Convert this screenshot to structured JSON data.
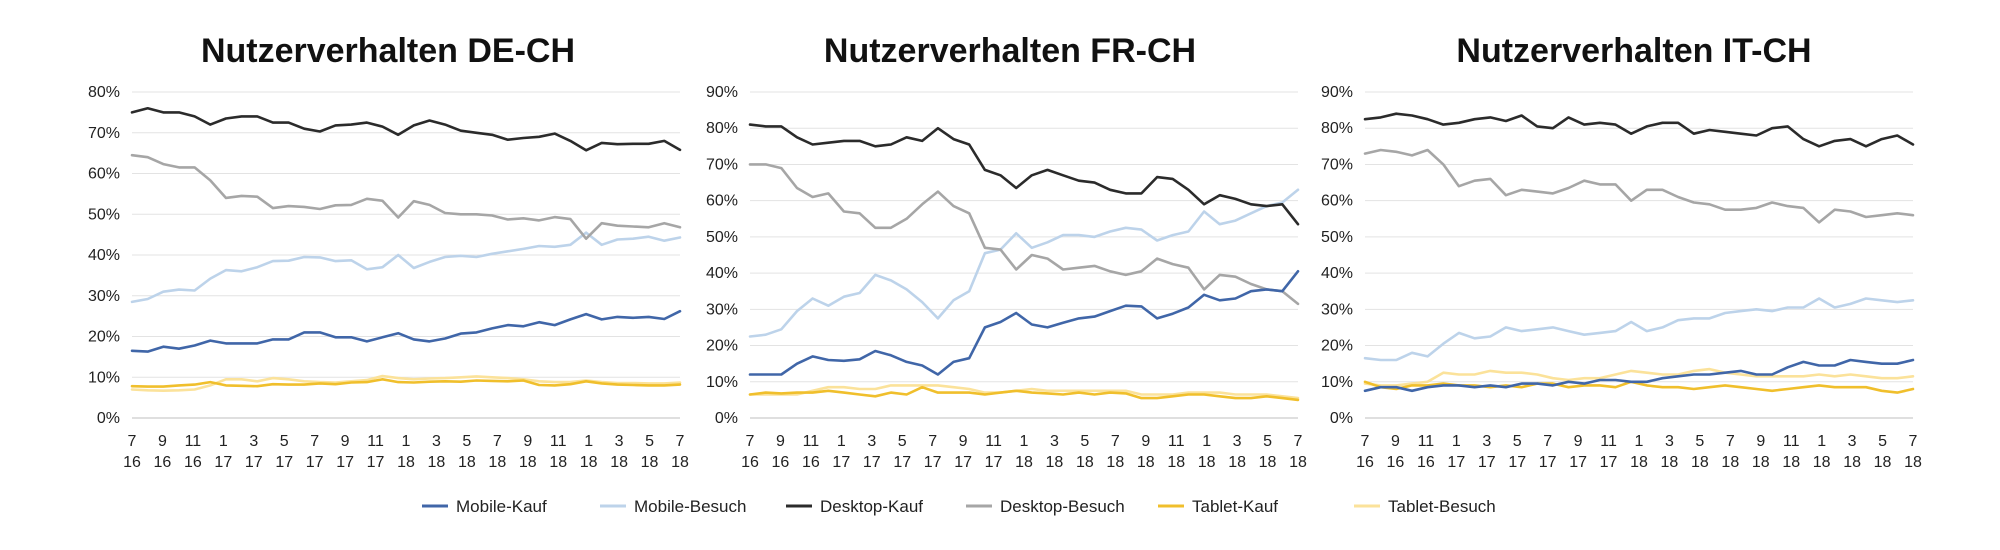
{
  "chart_data": [
    {
      "type": "line",
      "title": "Nutzerverhalten DE-CH",
      "xlabel": "",
      "ylabel": "",
      "ylim": [
        0,
        80
      ],
      "y_ticks": [
        "0%",
        "10%",
        "20%",
        "30%",
        "40%",
        "50%",
        "60%",
        "70%",
        "80%"
      ],
      "x_ticks": [
        [
          "7",
          "16"
        ],
        [
          "9",
          "16"
        ],
        [
          "11",
          "16"
        ],
        [
          "1",
          "17"
        ],
        [
          "3",
          "17"
        ],
        [
          "5",
          "17"
        ],
        [
          "7",
          "17"
        ],
        [
          "9",
          "17"
        ],
        [
          "11",
          "17"
        ],
        [
          "1",
          "18"
        ],
        [
          "3",
          "18"
        ],
        [
          "5",
          "18"
        ],
        [
          "7",
          "18"
        ],
        [
          "9",
          "18"
        ],
        [
          "11",
          "18"
        ],
        [
          "1",
          "18"
        ],
        [
          "3",
          "18"
        ],
        [
          "5",
          "18"
        ],
        [
          "7",
          "18"
        ]
      ],
      "grid": true,
      "series": [
        {
          "name": "Mobile-Kauf",
          "values": [
            16.5,
            16.3,
            17.5,
            17,
            17.8,
            19,
            18.3,
            18.3,
            18.3,
            19.3,
            19.3,
            21,
            21,
            19.8,
            19.8,
            18.8,
            19.8,
            20.8,
            19.3,
            18.8,
            19.5,
            20.7,
            21,
            22,
            22.8,
            22.5,
            23.5,
            22.8,
            24.2,
            25.5,
            24.2,
            24.8,
            24.6,
            24.8,
            24.3,
            26.2
          ]
        },
        {
          "name": "Mobile-Besuch",
          "values": [
            28.5,
            29.2,
            31,
            31.5,
            31.3,
            34.2,
            36.3,
            36,
            37,
            38.5,
            38.6,
            39.5,
            39.4,
            38.5,
            38.7,
            36.5,
            37,
            40,
            36.8,
            38.3,
            39.5,
            39.8,
            39.5,
            40.3,
            40.9,
            41.5,
            42.2,
            42,
            42.5,
            45.5,
            42.5,
            43.8,
            44,
            44.5,
            43.5,
            44.3
          ]
        },
        {
          "name": "Desktop-Kauf",
          "values": [
            75,
            76,
            75,
            75,
            74,
            72,
            73.5,
            74,
            74,
            72.5,
            72.5,
            71,
            70.3,
            71.8,
            72,
            72.5,
            71.5,
            69.5,
            71.8,
            73,
            72,
            70.5,
            70,
            69.5,
            68.3,
            68.7,
            69,
            69.8,
            68,
            65.7,
            67.5,
            67.2,
            67.3,
            67.3,
            68,
            65.8
          ]
        },
        {
          "name": "Desktop-Besuch",
          "values": [
            64.5,
            64,
            62.3,
            61.5,
            61.5,
            58.3,
            54,
            54.5,
            54.3,
            51.5,
            52,
            51.8,
            51.3,
            52.2,
            52.3,
            53.8,
            53.3,
            49.2,
            53.2,
            52.3,
            50.3,
            50,
            50,
            49.7,
            48.7,
            49,
            48.5,
            49.3,
            48.8,
            44,
            47.8,
            47.2,
            47,
            46.8,
            47.8,
            46.8
          ]
        },
        {
          "name": "Tablet-Kauf",
          "values": [
            7.8,
            7.7,
            7.7,
            8,
            8.2,
            8.8,
            8,
            7.9,
            7.8,
            8.3,
            8.2,
            8.2,
            8.5,
            8.3,
            8.7,
            8.8,
            9.5,
            8.8,
            8.7,
            8.9,
            9,
            8.9,
            9.2,
            9.1,
            9,
            9.2,
            8.1,
            8,
            8.3,
            9,
            8.5,
            8.2,
            8.1,
            8,
            8,
            8.2
          ]
        },
        {
          "name": "Tablet-Besuch",
          "values": [
            7,
            6.8,
            6.7,
            6.8,
            7,
            8,
            9.5,
            9.5,
            9,
            9.8,
            9.5,
            9,
            8.8,
            8.7,
            9,
            9.3,
            10.3,
            9.8,
            9.5,
            9.7,
            9.8,
            10,
            10.2,
            10,
            9.8,
            9.5,
            9,
            8.8,
            8.8,
            9.2,
            8.8,
            8.6,
            8.6,
            8.5,
            8.5,
            8.7
          ]
        }
      ]
    },
    {
      "type": "line",
      "title": "Nutzerverhalten FR-CH",
      "xlabel": "",
      "ylabel": "",
      "ylim": [
        0,
        90
      ],
      "y_ticks": [
        "0%",
        "10%",
        "20%",
        "30%",
        "40%",
        "50%",
        "60%",
        "70%",
        "80%",
        "90%"
      ],
      "x_ticks": [
        [
          "7",
          "16"
        ],
        [
          "9",
          "16"
        ],
        [
          "11",
          "16"
        ],
        [
          "1",
          "17"
        ],
        [
          "3",
          "17"
        ],
        [
          "5",
          "17"
        ],
        [
          "7",
          "17"
        ],
        [
          "9",
          "17"
        ],
        [
          "11",
          "17"
        ],
        [
          "1",
          "18"
        ],
        [
          "3",
          "18"
        ],
        [
          "5",
          "18"
        ],
        [
          "7",
          "18"
        ],
        [
          "9",
          "18"
        ],
        [
          "11",
          "18"
        ],
        [
          "1",
          "18"
        ],
        [
          "3",
          "18"
        ],
        [
          "5",
          "18"
        ],
        [
          "7",
          "18"
        ]
      ],
      "grid": true,
      "series": [
        {
          "name": "Mobile-Kauf",
          "values": [
            12,
            12,
            12,
            15,
            17,
            16,
            15.8,
            16.2,
            18.5,
            17.3,
            15.5,
            14.5,
            12,
            15.5,
            16.5,
            25,
            26.5,
            29,
            25.8,
            25,
            26.3,
            27.5,
            28,
            29.5,
            31,
            30.8,
            27.5,
            28.8,
            30.5,
            34,
            32.5,
            33,
            35,
            35.5,
            35,
            40.5
          ]
        },
        {
          "name": "Mobile-Besuch",
          "values": [
            22.5,
            23,
            24.5,
            29.5,
            33,
            31,
            33.5,
            34.5,
            39.5,
            38,
            35.5,
            32,
            27.5,
            32.5,
            35,
            45.5,
            46.5,
            51,
            47,
            48.5,
            50.5,
            50.5,
            50,
            51.5,
            52.5,
            52,
            49,
            50.5,
            51.5,
            57,
            53.5,
            54.5,
            56.5,
            58.5,
            59.5,
            63
          ]
        },
        {
          "name": "Desktop-Kauf",
          "values": [
            81,
            80.5,
            80.5,
            77.5,
            75.5,
            76,
            76.5,
            76.5,
            75,
            75.5,
            77.5,
            76.5,
            80,
            77,
            75.5,
            68.5,
            67,
            63.5,
            67,
            68.5,
            67,
            65.5,
            65,
            63,
            62,
            62,
            66.5,
            66,
            63,
            59,
            61.5,
            60.5,
            59,
            58.5,
            59,
            53.5
          ]
        },
        {
          "name": "Desktop-Besuch",
          "values": [
            70,
            70,
            69,
            63.5,
            61,
            62,
            57,
            56.5,
            52.5,
            52.5,
            55,
            59,
            62.5,
            58.5,
            56.5,
            47,
            46.5,
            41,
            45,
            44,
            41,
            41.5,
            42,
            40.5,
            39.5,
            40.5,
            44,
            42.5,
            41.5,
            35.5,
            39.5,
            39,
            37,
            35.5,
            35,
            31.5
          ]
        },
        {
          "name": "Tablet-Kauf",
          "values": [
            6.5,
            7,
            6.8,
            7,
            7,
            7.5,
            7,
            6.5,
            6,
            7,
            6.5,
            8.5,
            7,
            7,
            7,
            6.5,
            7,
            7.5,
            7,
            6.8,
            6.5,
            7,
            6.5,
            7,
            6.8,
            5.5,
            5.5,
            6,
            6.5,
            6.5,
            6,
            5.5,
            5.5,
            6,
            5.5,
            5
          ]
        },
        {
          "name": "Tablet-Besuch",
          "values": [
            6.5,
            6.5,
            6.5,
            6.5,
            7.5,
            8.5,
            8.5,
            8,
            8,
            9,
            9,
            9,
            9,
            8.5,
            8,
            7,
            7,
            7.5,
            8,
            7.5,
            7.5,
            7.5,
            7.5,
            7.5,
            7.5,
            6.5,
            6.5,
            6.5,
            7,
            7,
            7,
            6.5,
            6.5,
            6.5,
            6,
            5.5
          ]
        }
      ]
    },
    {
      "type": "line",
      "title": "Nutzerverhalten IT-CH",
      "xlabel": "",
      "ylabel": "",
      "ylim": [
        0,
        90
      ],
      "y_ticks": [
        "0%",
        "10%",
        "20%",
        "30%",
        "40%",
        "50%",
        "60%",
        "70%",
        "80%",
        "90%"
      ],
      "x_ticks": [
        [
          "7",
          "16"
        ],
        [
          "9",
          "16"
        ],
        [
          "11",
          "16"
        ],
        [
          "1",
          "17"
        ],
        [
          "3",
          "17"
        ],
        [
          "5",
          "17"
        ],
        [
          "7",
          "17"
        ],
        [
          "9",
          "17"
        ],
        [
          "11",
          "17"
        ],
        [
          "1",
          "18"
        ],
        [
          "3",
          "18"
        ],
        [
          "5",
          "18"
        ],
        [
          "7",
          "18"
        ],
        [
          "9",
          "18"
        ],
        [
          "11",
          "18"
        ],
        [
          "1",
          "18"
        ],
        [
          "3",
          "18"
        ],
        [
          "5",
          "18"
        ],
        [
          "7",
          "18"
        ]
      ],
      "grid": true,
      "series": [
        {
          "name": "Mobile-Kauf",
          "values": [
            7.5,
            8.5,
            8.5,
            7.5,
            8.5,
            9,
            9,
            8.5,
            9,
            8.5,
            9.5,
            9.5,
            9,
            10,
            9.5,
            10.5,
            10.5,
            10,
            10,
            11,
            11.5,
            12,
            12,
            12.5,
            13,
            12,
            12,
            14,
            15.5,
            14.5,
            14.5,
            16,
            15.5,
            15,
            15,
            16
          ]
        },
        {
          "name": "Mobile-Besuch",
          "values": [
            16.5,
            16,
            16,
            18,
            17,
            20.5,
            23.5,
            22,
            22.5,
            25,
            24,
            24.5,
            25,
            24,
            23,
            23.5,
            24,
            26.5,
            24,
            25,
            27,
            27.5,
            27.5,
            29,
            29.5,
            30,
            29.5,
            30.5,
            30.5,
            33,
            30.5,
            31.5,
            33,
            32.5,
            32,
            32.5
          ]
        },
        {
          "name": "Desktop-Kauf",
          "values": [
            82.5,
            83,
            84,
            83.5,
            82.5,
            81,
            81.5,
            82.5,
            83,
            82,
            83.5,
            80.5,
            80,
            83,
            81,
            81.5,
            81,
            78.5,
            80.5,
            81.5,
            81.5,
            78.5,
            79.5,
            79,
            78.5,
            78,
            80,
            80.5,
            77,
            75,
            76.5,
            77,
            75,
            77,
            78,
            75.5
          ]
        },
        {
          "name": "Desktop-Besuch",
          "values": [
            73,
            74,
            73.5,
            72.5,
            74,
            70,
            64,
            65.5,
            66,
            61.5,
            63,
            62.5,
            62,
            63.5,
            65.5,
            64.5,
            64.5,
            60,
            63,
            63,
            61,
            59.5,
            59,
            57.5,
            57.5,
            58,
            59.5,
            58.5,
            58,
            54,
            57.5,
            57,
            55.5,
            56,
            56.5,
            56
          ]
        },
        {
          "name": "Tablet-Kauf",
          "values": [
            10,
            8.5,
            8,
            9,
            9,
            9.5,
            9,
            9,
            8.5,
            9,
            8.5,
            9.5,
            9.5,
            8.5,
            9,
            9,
            8.5,
            10,
            9,
            8.5,
            8.5,
            8,
            8.5,
            9,
            8.5,
            8,
            7.5,
            8,
            8.5,
            9,
            8.5,
            8.5,
            8.5,
            7.5,
            7,
            8
          ]
        },
        {
          "name": "Tablet-Besuch",
          "values": [
            9.5,
            9,
            9,
            9.5,
            10,
            12.5,
            12,
            12,
            13,
            12.5,
            12.5,
            12,
            11,
            10.5,
            11,
            11,
            12,
            13,
            12.5,
            12,
            12,
            13,
            13.5,
            12.5,
            12,
            11.5,
            11.5,
            11.5,
            11.5,
            12,
            11.5,
            12,
            11.5,
            11,
            11,
            11.5
          ]
        }
      ]
    }
  ],
  "legend": {
    "placement": "bottom",
    "items": [
      {
        "label": "Mobile-Kauf",
        "color": "#4066a8"
      },
      {
        "label": "Mobile-Besuch",
        "color": "#bdd3ea"
      },
      {
        "label": "Desktop-Kauf",
        "color": "#2b2b2b"
      },
      {
        "label": "Desktop-Besuch",
        "color": "#a6a6a6"
      },
      {
        "label": "Tablet-Kauf",
        "color": "#f0bf2c"
      },
      {
        "label": "Tablet-Besuch",
        "color": "#fbe29a"
      }
    ]
  }
}
